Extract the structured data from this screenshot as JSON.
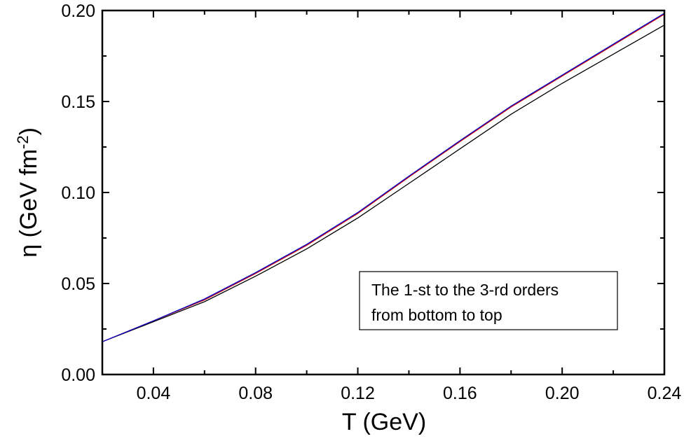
{
  "chart_data": {
    "type": "line",
    "xlabel": "T (GeV)",
    "ylabel": {
      "prefix": "η (GeV fm",
      "superscript": "-2",
      "suffix": ")"
    },
    "xlim": [
      0.02,
      0.24
    ],
    "ylim": [
      0.0,
      0.2
    ],
    "xticks": [
      "0.04",
      "0.08",
      "0.12",
      "0.16",
      "0.20",
      "0.24"
    ],
    "yticks": [
      "0.00",
      "0.05",
      "0.10",
      "0.15",
      "0.20"
    ],
    "x": [
      0.02,
      0.04,
      0.06,
      0.08,
      0.1,
      0.12,
      0.14,
      0.16,
      0.18,
      0.2,
      0.22,
      0.24
    ],
    "series": [
      {
        "color": "#000000",
        "values": [
          0.018,
          0.029,
          0.04,
          0.054,
          0.069,
          0.086,
          0.105,
          0.124,
          0.143,
          0.16,
          0.176,
          0.192
        ]
      },
      {
        "color": "#cc0000",
        "values": [
          0.018,
          0.0295,
          0.041,
          0.0555,
          0.071,
          0.0885,
          0.1085,
          0.128,
          0.147,
          0.164,
          0.181,
          0.198
        ]
      },
      {
        "color": "#0000cc",
        "values": [
          0.018,
          0.0295,
          0.0415,
          0.056,
          0.0715,
          0.089,
          0.109,
          0.1285,
          0.1475,
          0.1645,
          0.1815,
          0.1985
        ]
      }
    ],
    "annotation": [
      "The 1-st to the 3-rd orders",
      "from bottom to top"
    ],
    "grid": false
  }
}
